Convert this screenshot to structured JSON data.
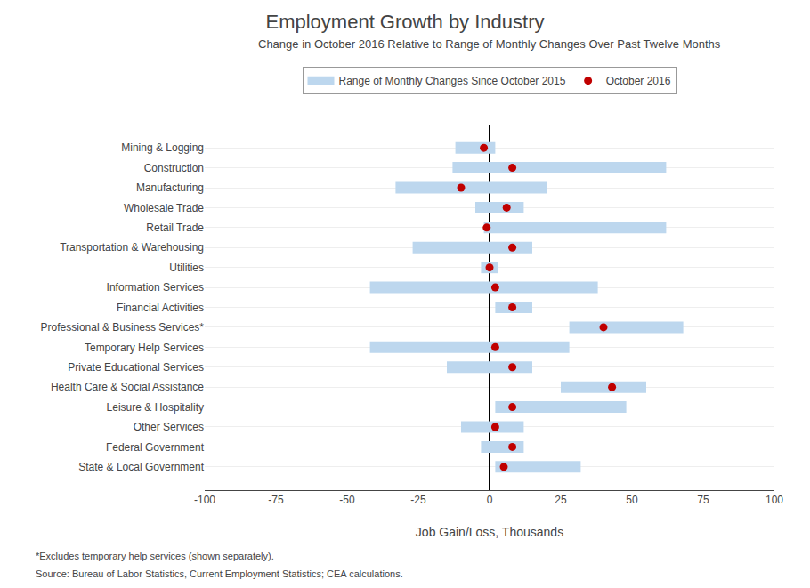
{
  "chart_data": {
    "type": "bar",
    "orientation": "horizontal",
    "title": "Employment Growth by Industry",
    "subtitle": "Change in October 2016 Relative to Range of Monthly Changes Over Past Twelve Months",
    "xlabel": "Job Gain/Loss, Thousands",
    "annotations": [
      "*Excludes temporary help services (shown separately).",
      "Source: Bureau of Labor Statistics, Current Employment Statistics; CEA calculations."
    ],
    "categories": [
      "Mining & Logging",
      "Construction",
      "Manufacturing",
      "Wholesale Trade",
      "Retail Trade",
      "Transportation & Warehousing",
      "Utilities",
      "Information Services",
      "Financial Activities",
      "Professional & Business Services*",
      "Temporary Help Services",
      "Private Educational Services",
      "Health Care & Social Assistance",
      "Leisure & Hospitality",
      "Other Services",
      "Federal Government",
      "State & Local Government"
    ],
    "series": [
      {
        "name": "Range of Monthly Changes Since October 2015",
        "type": "bar",
        "color": "#BDD7EE",
        "low": [
          -12,
          -13,
          -33,
          -5,
          -2,
          -27,
          -3,
          -42,
          2,
          28,
          -42,
          -15,
          25,
          2,
          -10,
          -3,
          2
        ],
        "high": [
          2,
          62,
          20,
          12,
          62,
          15,
          3,
          38,
          15,
          68,
          28,
          15,
          55,
          48,
          12,
          12,
          32
        ]
      },
      {
        "name": "October 2016",
        "type": "scatter",
        "marker": "circle",
        "color": "#C00000",
        "values": [
          -2,
          8,
          -10,
          6,
          -1,
          8,
          0,
          2,
          8,
          40,
          2,
          8,
          43,
          8,
          2,
          8,
          5
        ]
      }
    ],
    "xlim": [
      -100,
      100
    ],
    "xticks": [
      -100,
      -75,
      -50,
      -25,
      0,
      25,
      50,
      75,
      100
    ],
    "grid": "y",
    "legend": "top"
  }
}
